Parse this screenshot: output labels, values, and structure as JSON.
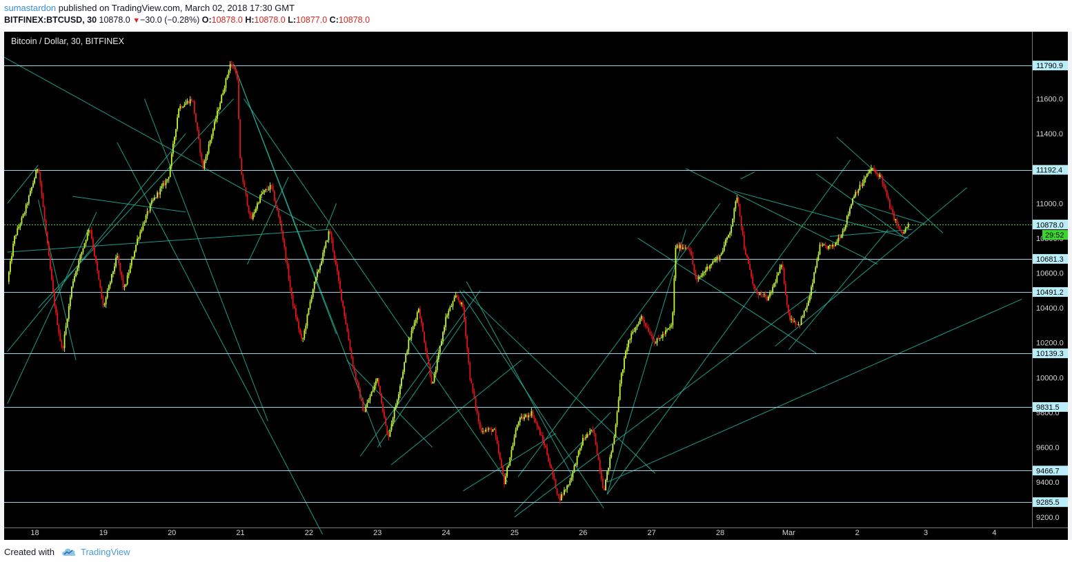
{
  "header": {
    "publisher": "sumastardon",
    "published_text": "published on TradingView.com, March 02, 2018 17:30 GMT",
    "symbol": "BITFINEX:BTCUSD, 30",
    "last": "10878.0",
    "change": "−30.0 (−0.28%)",
    "o_label": "O:",
    "o": "10878.0",
    "h_label": "H:",
    "h": "10878.0",
    "l_label": "L:",
    "l": "10877.0",
    "c_label": "C:",
    "c": "10878.0"
  },
  "footer": {
    "created_with": "Created with",
    "brand": "TradingView"
  },
  "colors": {
    "background": "#000000",
    "up": "#c6f93a",
    "down": "#e3141c",
    "hline": "#9ed8e6",
    "trendline": "#1fae96",
    "label_bg": "#b9eef8",
    "countdown_bg": "#3ad62f",
    "price_line": "#3ad62f"
  },
  "chart_data": {
    "type": "candlestick",
    "title": "Bitcoin / Dollar, 30, BITFINEX",
    "ylim": [
      9140,
      11985
    ],
    "yticks": [
      9200,
      9400,
      9600,
      9800,
      10000,
      10200,
      10400,
      10600,
      10800,
      11000,
      11400,
      11600
    ],
    "ytick_labels": [
      "9200.0",
      "9400.0",
      "9600.0",
      "9800.0",
      "10000.0",
      "10200.0",
      "10400.0",
      "10600.0",
      "10800.0",
      "11000.0",
      "11400.0",
      "11600.0"
    ],
    "x_range_days": [
      17.6,
      21.4
    ],
    "x_ticks": [
      {
        "day": 18,
        "label": "18"
      },
      {
        "day": 19,
        "label": "19"
      },
      {
        "day": 20,
        "label": "20"
      },
      {
        "day": 21,
        "label": "21"
      },
      {
        "day": 22,
        "label": "22"
      },
      {
        "day": 23,
        "label": "23"
      },
      {
        "day": 24,
        "label": "24"
      },
      {
        "day": 25,
        "label": "25"
      },
      {
        "day": 26,
        "label": "26"
      },
      {
        "day": 27,
        "label": "27"
      },
      {
        "day": 28,
        "label": "28"
      },
      {
        "day": 29,
        "label": "Mar"
      },
      {
        "day": 30,
        "label": "2"
      },
      {
        "day": 31,
        "label": "3"
      },
      {
        "day": 32,
        "label": "4"
      }
    ],
    "horizontal_levels": [
      11790.9,
      11192.4,
      10681.3,
      10491.2,
      10139.3,
      9831.5,
      9466.7,
      9285.5
    ],
    "horizontal_level_labels": [
      "11790.9",
      "11192.4",
      "10681.3",
      "10491.2",
      "10139.3",
      "9831.5",
      "9466.7",
      "9285.5"
    ],
    "last_price": 10878.0,
    "last_price_label": "10878.0",
    "countdown": "29:52",
    "candle_interval_minutes": 30,
    "price_path": [
      [
        17.6,
        10550
      ],
      [
        17.7,
        10800
      ],
      [
        17.85,
        10950
      ],
      [
        18.05,
        11220
      ],
      [
        18.2,
        10700
      ],
      [
        18.3,
        10380
      ],
      [
        18.4,
        10150
      ],
      [
        18.55,
        10550
      ],
      [
        18.8,
        10870
      ],
      [
        19.0,
        10400
      ],
      [
        19.2,
        10700
      ],
      [
        19.3,
        10500
      ],
      [
        19.5,
        10800
      ],
      [
        19.7,
        11000
      ],
      [
        19.95,
        11150
      ],
      [
        20.1,
        11550
      ],
      [
        20.3,
        11600
      ],
      [
        20.45,
        11200
      ],
      [
        20.65,
        11500
      ],
      [
        20.85,
        11800
      ],
      [
        20.95,
        11750
      ],
      [
        21.0,
        11200
      ],
      [
        21.15,
        10900
      ],
      [
        21.3,
        11050
      ],
      [
        21.45,
        11100
      ],
      [
        21.6,
        10850
      ],
      [
        21.75,
        10450
      ],
      [
        21.9,
        10200
      ],
      [
        22.05,
        10500
      ],
      [
        22.2,
        10700
      ],
      [
        22.3,
        10850
      ],
      [
        22.5,
        10400
      ],
      [
        22.65,
        10050
      ],
      [
        22.8,
        9800
      ],
      [
        23.0,
        10000
      ],
      [
        23.15,
        9650
      ],
      [
        23.3,
        9900
      ],
      [
        23.45,
        10200
      ],
      [
        23.6,
        10400
      ],
      [
        23.8,
        9950
      ],
      [
        24.0,
        10350
      ],
      [
        24.15,
        10470
      ],
      [
        24.25,
        10400
      ],
      [
        24.35,
        10000
      ],
      [
        24.5,
        9700
      ],
      [
        24.7,
        9700
      ],
      [
        24.85,
        9400
      ],
      [
        25.05,
        9750
      ],
      [
        25.25,
        9800
      ],
      [
        25.45,
        9600
      ],
      [
        25.65,
        9300
      ],
      [
        25.8,
        9400
      ],
      [
        26.0,
        9650
      ],
      [
        26.15,
        9700
      ],
      [
        26.3,
        9350
      ],
      [
        26.45,
        9650
      ],
      [
        26.55,
        10000
      ],
      [
        26.65,
        10200
      ],
      [
        26.85,
        10350
      ],
      [
        27.05,
        10200
      ],
      [
        27.3,
        10300
      ],
      [
        27.35,
        10750
      ],
      [
        27.55,
        10750
      ],
      [
        27.65,
        10550
      ],
      [
        27.85,
        10650
      ],
      [
        28.0,
        10700
      ],
      [
        28.15,
        10850
      ],
      [
        28.25,
        11050
      ],
      [
        28.35,
        10750
      ],
      [
        28.5,
        10500
      ],
      [
        28.7,
        10450
      ],
      [
        28.9,
        10650
      ],
      [
        29.0,
        10350
      ],
      [
        29.15,
        10300
      ],
      [
        29.3,
        10450
      ],
      [
        29.45,
        10750
      ],
      [
        29.65,
        10750
      ],
      [
        29.8,
        10850
      ],
      [
        29.95,
        11050
      ],
      [
        30.05,
        11100
      ],
      [
        30.2,
        11200
      ],
      [
        30.35,
        11150
      ],
      [
        30.5,
        10950
      ],
      [
        30.65,
        10820
      ],
      [
        30.75,
        10878
      ]
    ],
    "trendlines": [
      [
        [
          17.5,
          11850
        ],
        [
          22.1,
          10850
        ]
      ],
      [
        [
          17.6,
          11000
        ],
        [
          18.05,
          11220
        ]
      ],
      [
        [
          17.6,
          9850
        ],
        [
          18.9,
          10950
        ]
      ],
      [
        [
          17.6,
          10150
        ],
        [
          20.2,
          11400
        ]
      ],
      [
        [
          18.05,
          10400
        ],
        [
          20.9,
          11600
        ]
      ],
      [
        [
          17.6,
          10720
        ],
        [
          22.3,
          10850
        ]
      ],
      [
        [
          18.55,
          11040
        ],
        [
          20.2,
          10950
        ]
      ],
      [
        [
          18.05,
          11020
        ],
        [
          18.6,
          10100
        ]
      ],
      [
        [
          19.6,
          11600
        ],
        [
          21.4,
          9750
        ]
      ],
      [
        [
          19.2,
          11350
        ],
        [
          22.2,
          9100
        ]
      ],
      [
        [
          20.9,
          11800
        ],
        [
          22.4,
          10250
        ]
      ],
      [
        [
          20.95,
          11750
        ],
        [
          23.05,
          9600
        ]
      ],
      [
        [
          21.05,
          11600
        ],
        [
          24.9,
          9400
        ]
      ],
      [
        [
          21.1,
          10650
        ],
        [
          21.7,
          11150
        ]
      ],
      [
        [
          22.25,
          10850
        ],
        [
          22.4,
          11000
        ]
      ],
      [
        [
          22.55,
          10100
        ],
        [
          23.8,
          9600
        ]
      ],
      [
        [
          22.75,
          9550
        ],
        [
          24.5,
          10500
        ]
      ],
      [
        [
          23.0,
          9600
        ],
        [
          24.3,
          10350
        ]
      ],
      [
        [
          23.2,
          9500
        ],
        [
          25.1,
          10100
        ]
      ],
      [
        [
          24.2,
          10500
        ],
        [
          26.3,
          9250
        ]
      ],
      [
        [
          24.25,
          10500
        ],
        [
          27.05,
          9450
        ]
      ],
      [
        [
          24.3,
          10550
        ],
        [
          25.85,
          9430
        ]
      ],
      [
        [
          24.25,
          9350
        ],
        [
          25.6,
          9680
        ]
      ],
      [
        [
          25.0,
          9200
        ],
        [
          29.4,
          10500
        ]
      ],
      [
        [
          25.0,
          9230
        ],
        [
          26.4,
          9800
        ]
      ],
      [
        [
          25.05,
          9430
        ],
        [
          28.0,
          11000
        ]
      ],
      [
        [
          26.35,
          9330
        ],
        [
          29.9,
          11250
        ]
      ],
      [
        [
          26.35,
          9330
        ],
        [
          27.5,
          10850
        ]
      ],
      [
        [
          26.35,
          9400
        ],
        [
          32.4,
          10450
        ]
      ],
      [
        [
          26.8,
          10800
        ],
        [
          29.4,
          10140
        ]
      ],
      [
        [
          27.5,
          11200
        ],
        [
          30.3,
          10650
        ]
      ],
      [
        [
          28.2,
          11070
        ],
        [
          30.75,
          10800
        ]
      ],
      [
        [
          28.5,
          11180
        ],
        [
          28.3,
          11140
        ]
      ],
      [
        [
          28.8,
          10180
        ],
        [
          31.6,
          11090
        ]
      ],
      [
        [
          29.4,
          11170
        ],
        [
          30.7,
          10800
        ]
      ],
      [
        [
          29.6,
          10810
        ],
        [
          30.8,
          10850
        ]
      ],
      [
        [
          30.0,
          11000
        ],
        [
          31.0,
          10880
        ]
      ],
      [
        [
          29.7,
          11380
        ],
        [
          31.25,
          10830
        ]
      ],
      [
        [
          29.0,
          10160
        ],
        [
          30.45,
          10850
        ]
      ]
    ]
  }
}
